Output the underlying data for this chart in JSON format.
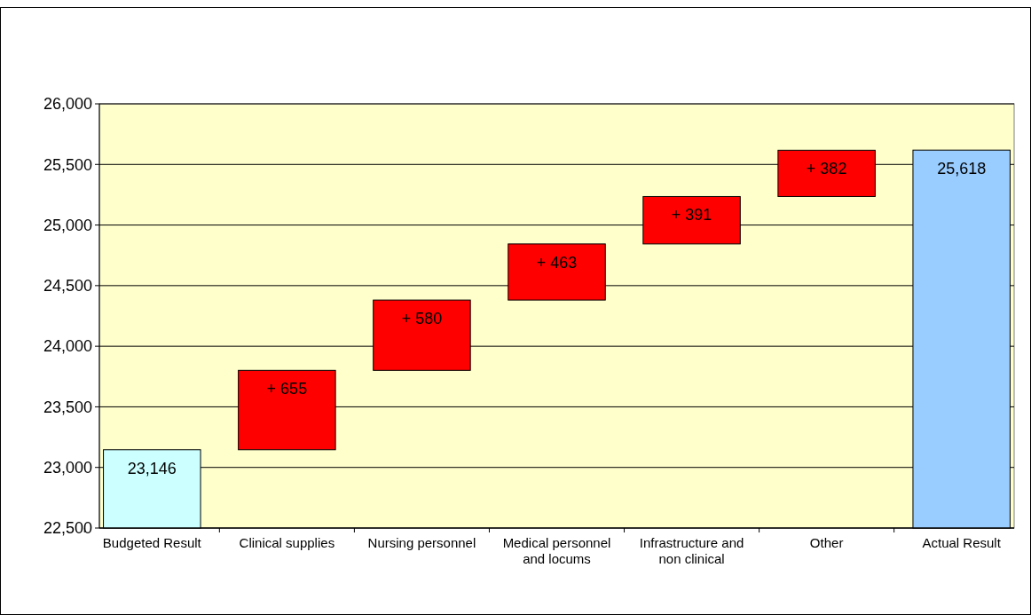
{
  "chart_data": {
    "type": "bar",
    "categories": [
      "Budgeted Result",
      "Clinical supplies",
      "Nursing personnel",
      "Medical personnel and locums",
      "Infrastructure and non clinical",
      "Other",
      "Actual Result"
    ],
    "values": [
      23146,
      655,
      580,
      463,
      391,
      382,
      25618
    ],
    "base": [
      null,
      23146,
      23801,
      24381,
      24844,
      25235,
      null
    ],
    "colors": [
      "#ccffff",
      "#ff0000",
      "#ff0000",
      "#ff0000",
      "#ff0000",
      "#ff0000",
      "#99ccff"
    ],
    "value_labels": [
      "23,146",
      "+ 655",
      "+ 580",
      "+ 463",
      "+ 391",
      "+ 382",
      "25,618"
    ],
    "ylim": [
      22500,
      26000
    ],
    "yticks": [
      {
        "value": 22500,
        "label": "22,500"
      },
      {
        "value": 23000,
        "label": "23,000"
      },
      {
        "value": 23500,
        "label": "23,500"
      },
      {
        "value": 24000,
        "label": "24,000"
      },
      {
        "value": 24500,
        "label": "24,500"
      },
      {
        "value": 25000,
        "label": "25,000"
      },
      {
        "value": 25500,
        "label": "25,500"
      },
      {
        "value": 26000,
        "label": "26,000"
      }
    ],
    "grid": "y"
  }
}
